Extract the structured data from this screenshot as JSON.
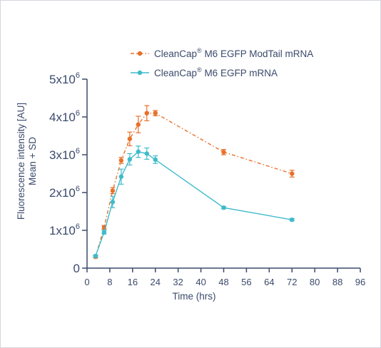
{
  "chart_data": {
    "type": "line",
    "xlabel": "Time (hrs)",
    "ylabel_lines": [
      "Fluorescence intensity [AU]",
      "Mean + SD"
    ],
    "xlim": [
      0,
      96
    ],
    "ylim": [
      0,
      5000000
    ],
    "x_ticks": [
      0,
      8,
      16,
      24,
      32,
      40,
      48,
      56,
      64,
      72,
      80,
      88,
      96
    ],
    "x_tick_labels": [
      "0",
      "8",
      "16",
      "24",
      "32",
      "40",
      "48",
      "56",
      "64",
      "72",
      "80",
      "88",
      "96"
    ],
    "y_ticks": [
      0,
      1000000,
      2000000,
      3000000,
      4000000,
      5000000
    ],
    "y_tick_labels": [
      {
        "base": "0",
        "exp": ""
      },
      {
        "base": "1x10",
        "exp": "6"
      },
      {
        "base": "2x10",
        "exp": "6"
      },
      {
        "base": "3x10",
        "exp": "6"
      },
      {
        "base": "4x10",
        "exp": "6"
      },
      {
        "base": "5x10",
        "exp": "6"
      }
    ],
    "grid": false,
    "legend_position": "top-right",
    "series": [
      {
        "name_parts": [
          "CleanCap",
          "®",
          " M6 EGFP ModTail mRNA"
        ],
        "color": "#e8702a",
        "line_style": "dashdot",
        "x": [
          3,
          6,
          9,
          12,
          15,
          18,
          21,
          24,
          48,
          72
        ],
        "y": [
          300000,
          1080000,
          2050000,
          2850000,
          3420000,
          3800000,
          4100000,
          4100000,
          3070000,
          2500000
        ],
        "sd": [
          30000,
          50000,
          80000,
          80000,
          180000,
          220000,
          200000,
          70000,
          70000,
          90000
        ]
      },
      {
        "name_parts": [
          "CleanCap",
          "®",
          " M6 EGFP mRNA"
        ],
        "color": "#3ebbcb",
        "line_style": "solid",
        "x": [
          3,
          6,
          9,
          12,
          15,
          18,
          21,
          24,
          48,
          72
        ],
        "y": [
          320000,
          950000,
          1750000,
          2420000,
          2880000,
          3080000,
          3030000,
          2870000,
          1600000,
          1280000
        ],
        "sd": [
          30000,
          50000,
          150000,
          200000,
          150000,
          150000,
          150000,
          100000,
          30000,
          30000
        ]
      }
    ]
  }
}
